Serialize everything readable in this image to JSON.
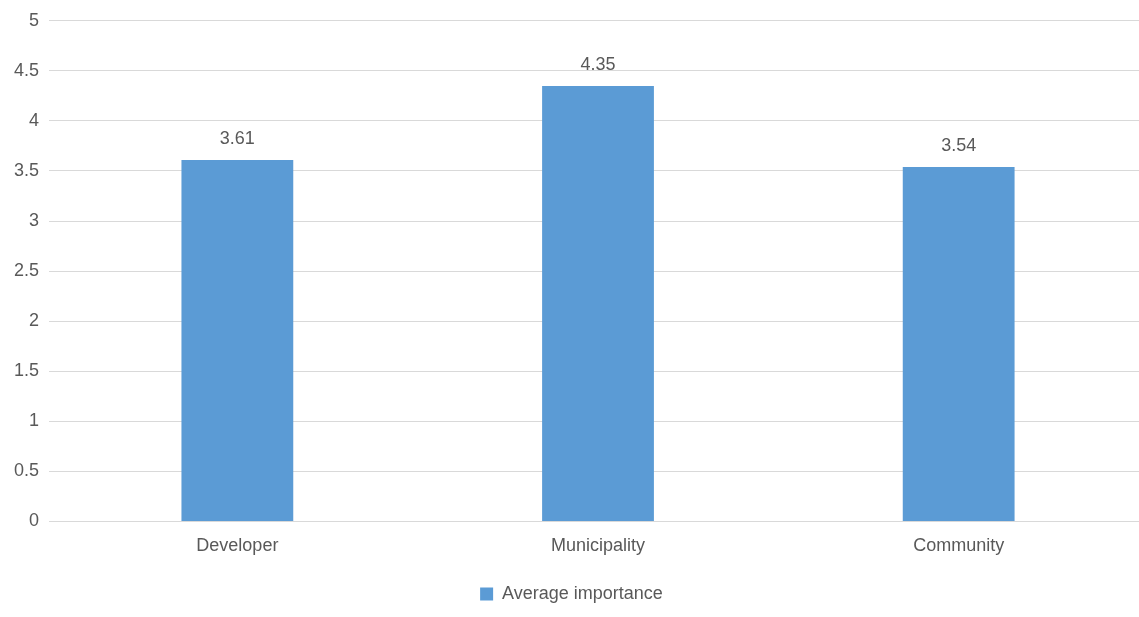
{
  "chart_data": {
    "type": "bar",
    "categories": [
      "Developer",
      "Municipality",
      "Community"
    ],
    "series": [
      {
        "name": "Average importance",
        "color": "#5b9bd5",
        "values": [
          3.61,
          4.35,
          3.54
        ]
      }
    ],
    "ylim": [
      0,
      5
    ],
    "yticks": [
      0,
      0.5,
      1,
      1.5,
      2,
      2.5,
      3,
      3.5,
      4,
      4.5,
      5
    ],
    "grid": "y",
    "legend": "bottom",
    "data_labels": true
  }
}
